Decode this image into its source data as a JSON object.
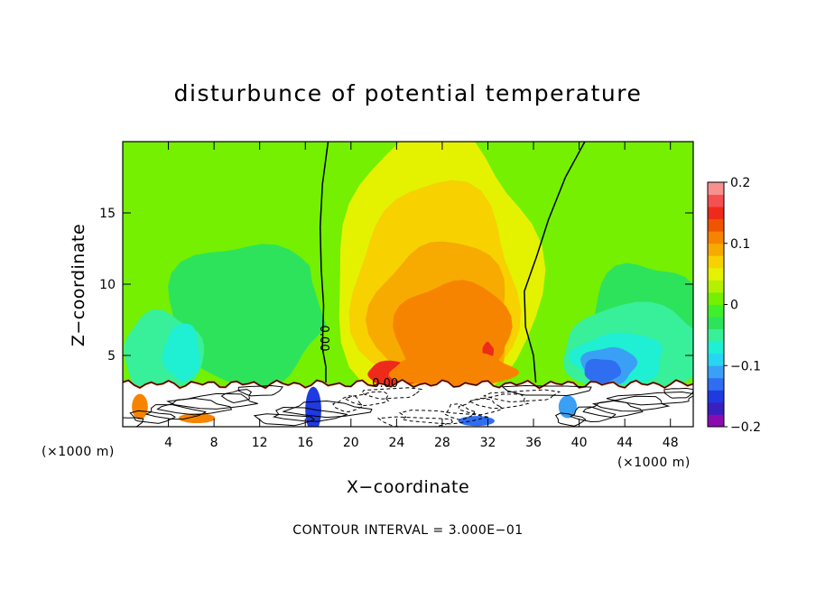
{
  "chart_data": {
    "type": "heatmap",
    "title": "disturbunce of potential temperature",
    "xlabel": "X−coordinate",
    "ylabel": "Z−coordinate",
    "x_unit_left": "(×1000 m)",
    "x_unit_right": "(×1000 m)",
    "xlim": [
      0,
      50
    ],
    "ylim": [
      0,
      20
    ],
    "x_ticks": [
      {
        "value": 4,
        "label": "4"
      },
      {
        "value": 8,
        "label": "8"
      },
      {
        "value": 12,
        "label": "12"
      },
      {
        "value": 16,
        "label": "16"
      },
      {
        "value": 20,
        "label": "20"
      },
      {
        "value": 24,
        "label": "24"
      },
      {
        "value": 28,
        "label": "28"
      },
      {
        "value": 32,
        "label": "32"
      },
      {
        "value": 36,
        "label": "36"
      },
      {
        "value": 40,
        "label": "40"
      },
      {
        "value": 44,
        "label": "44"
      },
      {
        "value": 48,
        "label": "48"
      }
    ],
    "y_ticks": [
      {
        "value": 5,
        "label": "5"
      },
      {
        "value": 10,
        "label": "10"
      },
      {
        "value": 15,
        "label": "15"
      }
    ],
    "colorbar": {
      "min": -0.2,
      "max": 0.2,
      "ticks": [
        {
          "value": 0.2,
          "label": "0.2"
        },
        {
          "value": 0.1,
          "label": "0.1"
        },
        {
          "value": 0,
          "label": "0"
        },
        {
          "value": -0.1,
          "label": "−0.1"
        },
        {
          "value": -0.2,
          "label": "−0.2"
        }
      ],
      "colors": [
        "#8a0cb0",
        "#3a1fc0",
        "#1f3ae0",
        "#2f6ef0",
        "#3aa0f5",
        "#27d6f0",
        "#1fefd2",
        "#38f09a",
        "#2ee35c",
        "#3ef02a",
        "#74f000",
        "#b4f000",
        "#e4f200",
        "#f7d100",
        "#f7aa00",
        "#f78400",
        "#f05400",
        "#ee2a1a",
        "#f55050",
        "#f89090"
      ]
    },
    "contour_labels": [
      {
        "text": "0.00",
        "x": 17.6,
        "z": 6.2,
        "vertical": true
      },
      {
        "text": "0.00",
        "x": 23.0,
        "z": 3.0,
        "vertical": false
      }
    ],
    "contour_interval_text": "CONTOUR INTERVAL = 3.000E−01",
    "terrain_top": 3.0,
    "regions": [
      {
        "value": -0.03,
        "cx": 11,
        "cz": 8,
        "rx": 7,
        "rz": 5
      },
      {
        "value": -0.03,
        "cx": 46,
        "cz": 7,
        "rx": 5,
        "rz": 4.5
      },
      {
        "value": -0.06,
        "cx": 3.5,
        "cz": 5.2,
        "rx": 3.5,
        "rz": 2.8
      },
      {
        "value": -0.06,
        "cx": 45,
        "cz": 5.5,
        "rx": 6.5,
        "rz": 3
      },
      {
        "value": -0.08,
        "cx": 5.2,
        "cz": 5.2,
        "rx": 1.6,
        "rz": 2
      },
      {
        "value": -0.08,
        "cx": 43.5,
        "cz": 4.8,
        "rx": 4,
        "rz": 1.8
      },
      {
        "value": -0.11,
        "cx": 42.6,
        "cz": 4.3,
        "rx": 2.4,
        "rz": 1.3
      },
      {
        "value": -0.14,
        "cx": 42,
        "cz": 3.9,
        "rx": 1.6,
        "rz": 0.9
      },
      {
        "value": 0.02,
        "cx": 28,
        "cz": 12,
        "rx": 12,
        "rz": 11
      },
      {
        "value": 0.04,
        "cx": 27.5,
        "cz": 11,
        "rx": 9,
        "rz": 9.5
      },
      {
        "value": 0.06,
        "cx": 27.5,
        "cz": 9.5,
        "rx": 7.2,
        "rz": 7.5
      },
      {
        "value": 0.08,
        "cx": 28,
        "cz": 7.5,
        "rx": 6,
        "rz": 5.5
      },
      {
        "value": 0.1,
        "cx": 29,
        "cz": 6.3,
        "rx": 5,
        "rz": 4
      },
      {
        "value": 0.12,
        "cx": 30.5,
        "cz": 5.6,
        "rx": 2.8,
        "rz": 2.2
      },
      {
        "value": 0.14,
        "cx": 24,
        "cz": 3.7,
        "rx": 2.6,
        "rz": 0.9
      },
      {
        "value": 0.14,
        "cx": 32,
        "cz": 5.3,
        "rx": 0.5,
        "rz": 0.6
      },
      {
        "value": 0.1,
        "cx": 29,
        "cz": 4.0,
        "rx": 5.5,
        "rz": 1.2
      }
    ]
  }
}
